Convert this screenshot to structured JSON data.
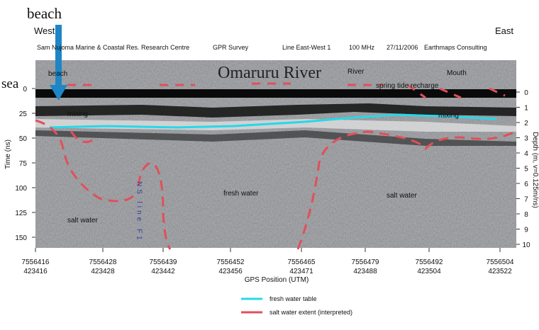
{
  "header": {
    "beach": "beach",
    "sea": "sea",
    "west": "West",
    "east": "East",
    "subtitle": [
      "Sam Nujoma Marine & Coastal Res. Research Centre",
      "GPR Survey",
      "Line East-West 1",
      "100 MHz",
      "27/11/2006",
      "Earthmaps Consulting"
    ]
  },
  "annotations": {
    "river_title": "Omaruru River",
    "beach": "beach",
    "river": "River",
    "mouth": "Mouth",
    "recharge": "spring tide recharge",
    "mixing_left": "mixing",
    "mixing_right": "mixing",
    "fresh_water": "fresh water",
    "salt_water_right": "salt water",
    "salt_water_left": "salt water",
    "line_marker": "NS line F1"
  },
  "time_axis": {
    "label": "Time (ns)",
    "ticks": [
      0,
      25,
      50,
      75,
      100,
      125,
      150
    ]
  },
  "depth_axis": {
    "label": "Depth (m, v=0.125m/ns)",
    "ticks": [
      0,
      1,
      2,
      3,
      4,
      5,
      6,
      7,
      8,
      9,
      10
    ]
  },
  "gps_axis": {
    "label": "GPS Position (UTM)",
    "ticks": [
      [
        "7556416",
        "423416"
      ],
      [
        "7556428",
        "423428"
      ],
      [
        "7556439",
        "423442"
      ],
      [
        "7556452",
        "423456"
      ],
      [
        "7556465",
        "423471"
      ],
      [
        "7556479",
        "423488"
      ],
      [
        "7556492",
        "423504"
      ],
      [
        "7556504",
        "423522"
      ]
    ]
  },
  "legend": [
    "fresh water table",
    "salt water extent (interpreted)"
  ]
}
